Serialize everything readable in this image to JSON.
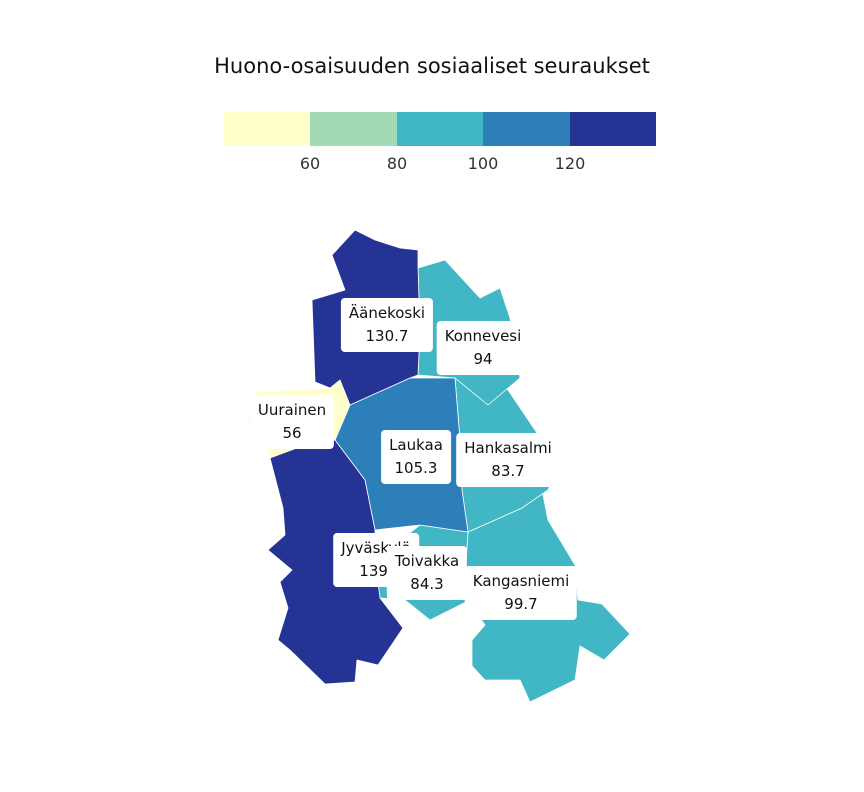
{
  "title": "Huono-osaisuuden sosiaaliset seuraukset",
  "legend": {
    "colors": [
      "#ffffcc",
      "#a1dab4",
      "#41b6c4",
      "#2c7fb8",
      "#253494"
    ],
    "ticks": [
      "60",
      "80",
      "100",
      "120"
    ]
  },
  "regions": [
    {
      "name": "Äänekoski",
      "value": "130.7",
      "color": "#253494"
    },
    {
      "name": "Konnevesi",
      "value": "94",
      "color": "#41b6c4"
    },
    {
      "name": "Uurainen",
      "value": "56",
      "color": "#ffffcc"
    },
    {
      "name": "Laukaa",
      "value": "105.3",
      "color": "#2c7fb8"
    },
    {
      "name": "Hankasalmi",
      "value": "83.7",
      "color": "#41b6c4"
    },
    {
      "name": "Jyväskylä",
      "value": "139.",
      "color": "#253494"
    },
    {
      "name": "Toivakka",
      "value": "84.3",
      "color": "#41b6c4"
    },
    {
      "name": "Kangasniemi",
      "value": "99.7",
      "color": "#41b6c4"
    }
  ]
}
